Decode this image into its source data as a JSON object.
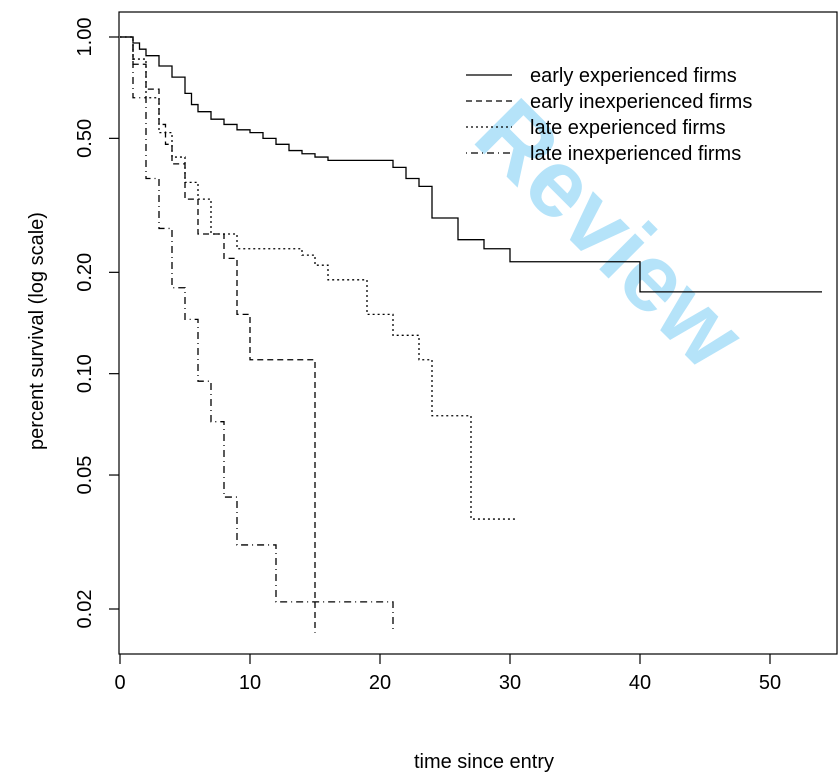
{
  "chart_data": {
    "type": "line",
    "title": "",
    "xlabel": "time since entry",
    "ylabel": "percent survival (log scale)",
    "xlim": [
      0,
      53
    ],
    "ylim": [
      0.015,
      1.05
    ],
    "y_scale": "log",
    "grid": false,
    "legend_position": "top-right",
    "x_ticks": [
      0,
      10,
      20,
      30,
      40,
      50
    ],
    "x_tick_labels": [
      "0",
      "10",
      "20",
      "30",
      "40",
      "50"
    ],
    "y_ticks": [
      0.02,
      0.05,
      0.1,
      0.2,
      0.5,
      1.0
    ],
    "y_tick_labels": [
      "0.02",
      "0.05",
      "0.10",
      "0.20",
      "0.50",
      "1.00"
    ],
    "series": [
      {
        "name": "early experienced firms",
        "line_style": "solid",
        "x": [
          0,
          1,
          1.5,
          2,
          3,
          4,
          5,
          5.5,
          6,
          7,
          8,
          9,
          10,
          11,
          12,
          13,
          14,
          15,
          16,
          17,
          18,
          19,
          20,
          21,
          22,
          23,
          24,
          26,
          28,
          30,
          40,
          54
        ],
        "y": [
          1.0,
          0.96,
          0.92,
          0.88,
          0.82,
          0.76,
          0.68,
          0.63,
          0.6,
          0.57,
          0.55,
          0.53,
          0.52,
          0.5,
          0.48,
          0.46,
          0.45,
          0.44,
          0.43,
          0.43,
          0.43,
          0.43,
          0.43,
          0.41,
          0.38,
          0.36,
          0.29,
          0.25,
          0.235,
          0.215,
          0.175,
          0.175
        ]
      },
      {
        "name": "early inexperienced firms",
        "line_style": "dashed",
        "x": [
          0,
          1,
          2,
          3,
          3.5,
          4,
          5,
          6,
          8,
          9,
          10,
          15
        ],
        "y": [
          1.0,
          0.83,
          0.7,
          0.55,
          0.48,
          0.42,
          0.33,
          0.26,
          0.22,
          0.15,
          0.11,
          0.017
        ]
      },
      {
        "name": "late experienced firms",
        "line_style": "dotted",
        "x": [
          0,
          1,
          2,
          3,
          4,
          5,
          6,
          7,
          9,
          14,
          15,
          16,
          19,
          21,
          23,
          24,
          27,
          30.5
        ],
        "y": [
          1.0,
          0.86,
          0.66,
          0.52,
          0.44,
          0.37,
          0.33,
          0.26,
          0.235,
          0.225,
          0.21,
          0.19,
          0.15,
          0.13,
          0.11,
          0.075,
          0.037,
          0.037
        ]
      },
      {
        "name": "late inexperienced firms",
        "line_style": "dot-dash",
        "x": [
          0,
          1,
          2,
          3,
          4,
          5,
          6,
          7,
          8,
          9,
          12,
          15,
          21
        ],
        "y": [
          1.0,
          0.66,
          0.38,
          0.27,
          0.18,
          0.145,
          0.095,
          0.072,
          0.043,
          0.031,
          0.021,
          0.021,
          0.017
        ]
      }
    ]
  },
  "watermark": {
    "text": "Review"
  }
}
